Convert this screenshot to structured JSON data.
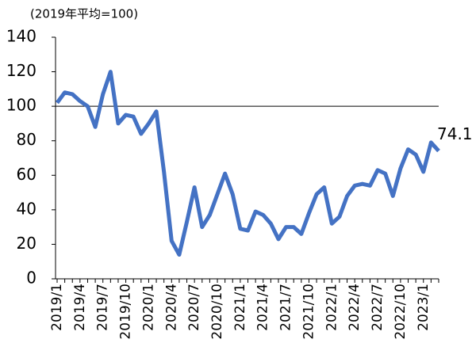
{
  "chart_data": {
    "type": "line",
    "y_label": "(2019年平均=100)",
    "categories": [
      "2019/1",
      null,
      null,
      "2019/4",
      null,
      null,
      "2019/7",
      null,
      null,
      "2019/10",
      null,
      null,
      "2020/1",
      null,
      null,
      "2020/4",
      null,
      null,
      "2020/7",
      null,
      null,
      "2020/10",
      null,
      null,
      "2021/1",
      null,
      null,
      "2021/4",
      null,
      null,
      "2021/7",
      null,
      null,
      "2021/10",
      null,
      null,
      "2022/1",
      null,
      null,
      "2022/4",
      null,
      null,
      "2022/7",
      null,
      null,
      "2022/10",
      null,
      null,
      "2023/1",
      null,
      null
    ],
    "series": [
      {
        "color": "#4472c4",
        "values": [
          102,
          108,
          107,
          103,
          100,
          88,
          107,
          120,
          90,
          95,
          94,
          84,
          90,
          97,
          62,
          22,
          14,
          33,
          53,
          30,
          37,
          49,
          61,
          49,
          29,
          28,
          39,
          37,
          32,
          23,
          30,
          30,
          26,
          38,
          49,
          53,
          32,
          36,
          48,
          54,
          55,
          54,
          63,
          61,
          48,
          64,
          75,
          72,
          62,
          79,
          74.1
        ]
      }
    ],
    "ylim": [
      0,
      140
    ],
    "yticks": [
      0,
      20,
      40,
      60,
      80,
      100,
      120,
      140
    ],
    "reference_line": 100
  }
}
